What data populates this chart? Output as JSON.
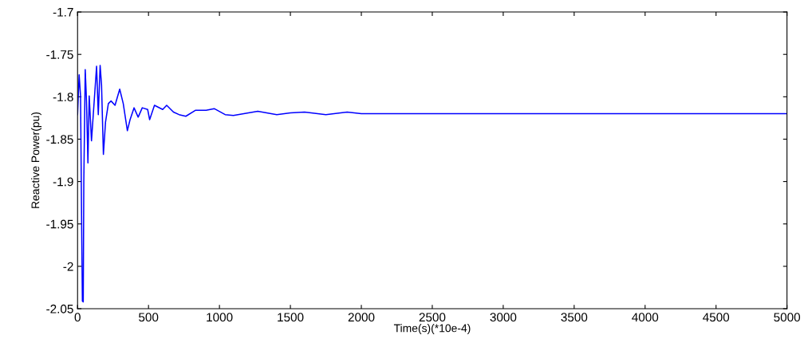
{
  "chart_data": {
    "type": "line",
    "xlabel": "Time(s)(*10e-4)",
    "ylabel": "Reactive Power(pu)",
    "xlim": [
      0,
      5000
    ],
    "xticks": [
      0,
      500,
      1000,
      1500,
      2000,
      2500,
      3000,
      3500,
      4000,
      4500,
      5000
    ],
    "ylim": [
      -2.05,
      -1.7
    ],
    "yticks": [
      -2.05,
      -2,
      -1.95,
      -1.9,
      -1.85,
      -1.8,
      -1.75,
      -1.7
    ],
    "grid": false,
    "series": [
      {
        "color": "#0000ff",
        "x": [
          0,
          11,
          21,
          29,
          34,
          40,
          44,
          54,
          63,
          73,
          82,
          98,
          121,
          134,
          146,
          159,
          169,
          182,
          197,
          217,
          236,
          264,
          297,
          322,
          351,
          370,
          398,
          427,
          456,
          494,
          508,
          542,
          600,
          628,
          676,
          715,
          763,
          830,
          906,
          963,
          1040,
          1098,
          1270,
          1404,
          1500,
          1600,
          1750,
          1900,
          2000,
          2250,
          2500,
          3000,
          3500,
          4000,
          4500,
          5000
        ],
        "values": [
          -1.821,
          -1.774,
          -1.799,
          -1.956,
          -2.041,
          -2.042,
          -1.9,
          -1.768,
          -1.805,
          -1.878,
          -1.799,
          -1.852,
          -1.796,
          -1.764,
          -1.821,
          -1.763,
          -1.786,
          -1.868,
          -1.83,
          -1.808,
          -1.805,
          -1.81,
          -1.791,
          -1.808,
          -1.84,
          -1.827,
          -1.813,
          -1.824,
          -1.813,
          -1.815,
          -1.827,
          -1.81,
          -1.815,
          -1.81,
          -1.818,
          -1.821,
          -1.823,
          -1.816,
          -1.816,
          -1.814,
          -1.821,
          -1.822,
          -1.817,
          -1.821,
          -1.819,
          -1.818,
          -1.821,
          -1.818,
          -1.82,
          -1.82,
          -1.82,
          -1.82,
          -1.82,
          -1.82,
          -1.82,
          -1.82
        ]
      }
    ]
  }
}
